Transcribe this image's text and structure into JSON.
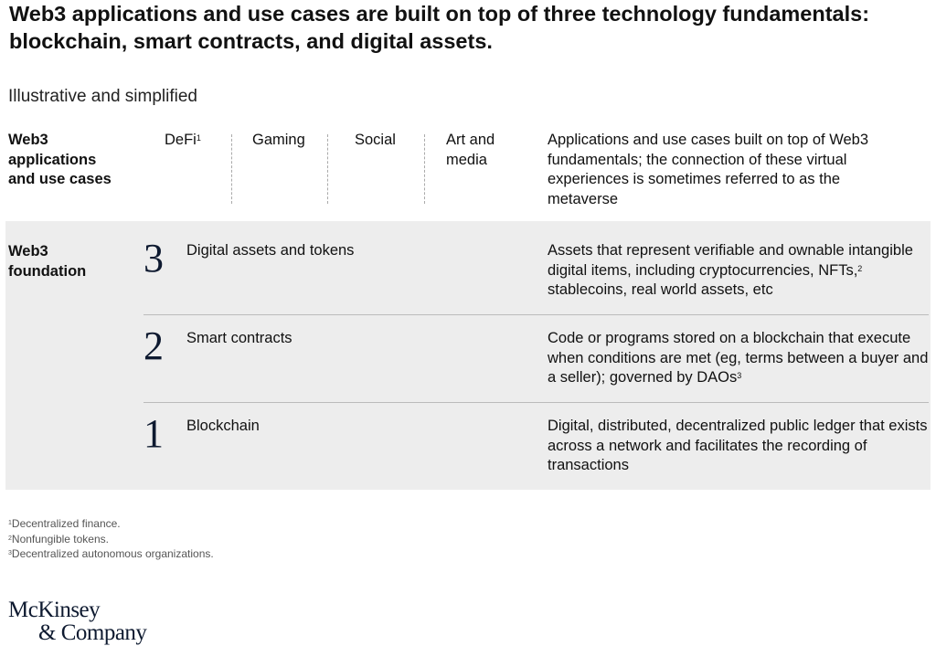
{
  "header": {
    "title": "Web3 applications and use cases are built on top of three technology fundamentals: blockchain, smart contracts, and digital assets.",
    "subtitle": "Illustrative and simplified"
  },
  "applications": {
    "label": "Web3 applications and use cases",
    "items": [
      {
        "name": "DeFi",
        "sup": "1"
      },
      {
        "name": "Gaming"
      },
      {
        "name": "Social"
      },
      {
        "name": "Art and media"
      }
    ],
    "description": [
      {
        "text": "Applications and use cases built on top of Web3 fundamentals; the connection of these virtual experiences is sometimes referred to as the metaverse"
      }
    ]
  },
  "foundation": {
    "label": "Web3 foundation",
    "layers": [
      {
        "number": "3",
        "name": "Digital assets and tokens",
        "description": [
          {
            "text": "Assets that represent verifiable and ownable intangible digital items, including cryptocurrencies, NFTs,"
          },
          {
            "sup": "2"
          },
          {
            "text": " stablecoins, real world assets, etc"
          }
        ]
      },
      {
        "number": "2",
        "name": "Smart contracts",
        "description": [
          {
            "text": "Code or programs stored on a blockchain that execute when conditions are met (eg, terms between a buyer and a seller); governed by DAOs"
          },
          {
            "sup": "3"
          }
        ]
      },
      {
        "number": "1",
        "name": "Blockchain",
        "description": [
          {
            "text": "Digital, distributed, decentralized public ledger that exists across a network and facilitates the recording of transactions"
          }
        ]
      }
    ]
  },
  "footnotes": [
    {
      "mark": "1",
      "text": "Decentralized finance."
    },
    {
      "mark": "2",
      "text": "Nonfungible tokens."
    },
    {
      "mark": "3",
      "text": "Decentralized autonomous organizations."
    }
  ],
  "logo": {
    "line1": "McKinsey",
    "line2": "& Company"
  }
}
